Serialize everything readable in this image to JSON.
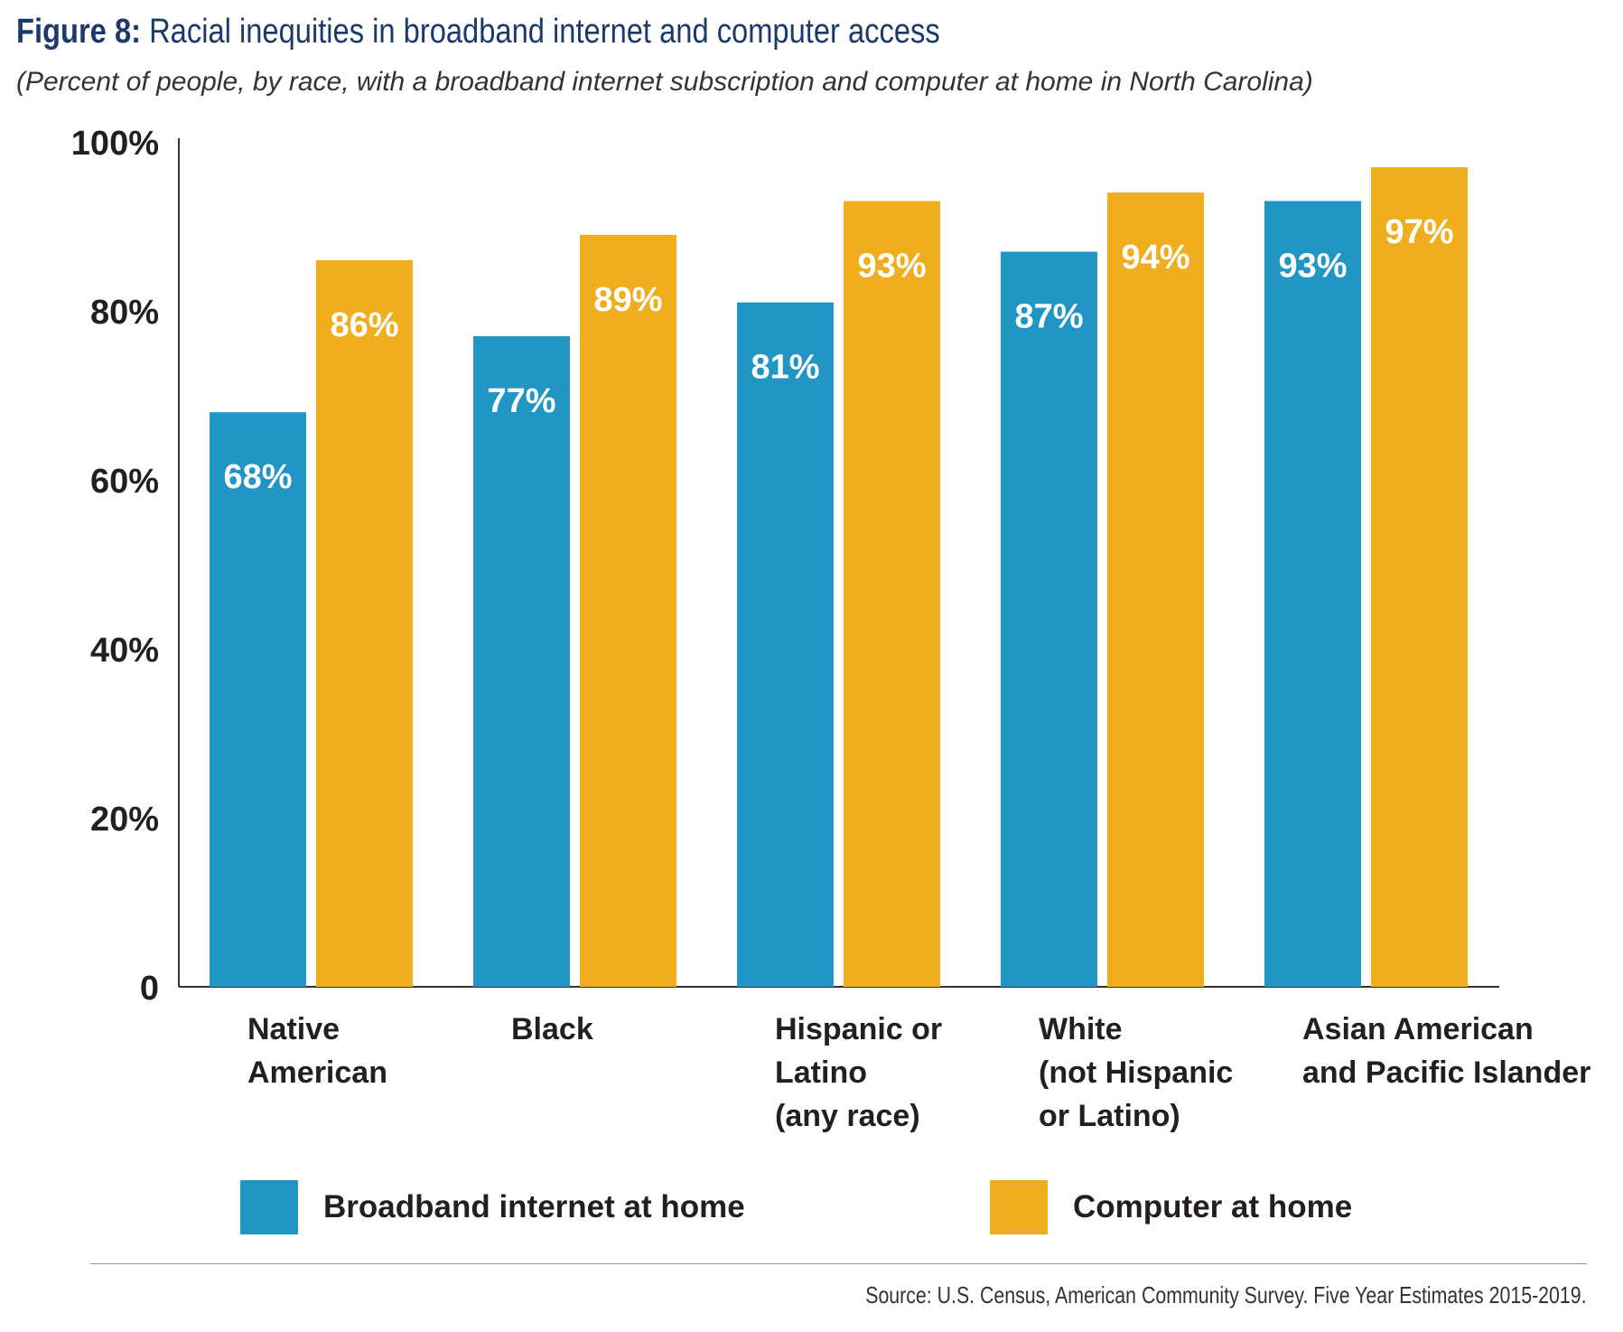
{
  "header": {
    "figure_label": "Figure 8:",
    "title": "Racial inequities in broadband internet and computer access",
    "subtitle": "(Percent of people, by race, with a broadband internet subscription and computer at home in North Carolina)"
  },
  "chart_data": {
    "type": "bar",
    "categories": [
      [
        "Native",
        "American"
      ],
      [
        "Black"
      ],
      [
        "Hispanic or",
        "Latino",
        "(any race)"
      ],
      [
        "White",
        "(not Hispanic",
        "or Latino)"
      ],
      [
        "Asian American",
        " and Pacific Islander"
      ]
    ],
    "series": [
      {
        "name": "Broadband internet at home",
        "color": "#2196c4",
        "values": [
          68,
          77,
          81,
          87,
          93
        ]
      },
      {
        "name": "Computer at home",
        "color": "#f0ae1e",
        "values": [
          86,
          89,
          93,
          94,
          97
        ]
      }
    ],
    "data_labels": [
      [
        "68%",
        "77%",
        "81%",
        "87%",
        "93%"
      ],
      [
        "86%",
        "89%",
        "93%",
        "94%",
        "97%"
      ]
    ],
    "yticks": [
      {
        "value": 0,
        "label": "0"
      },
      {
        "value": 20,
        "label": "20%"
      },
      {
        "value": 40,
        "label": "40%"
      },
      {
        "value": 60,
        "label": "60%"
      },
      {
        "value": 80,
        "label": "80%"
      },
      {
        "value": 100,
        "label": "100%"
      }
    ],
    "ylim": [
      0,
      100
    ],
    "grid": false,
    "legend_position": "bottom"
  },
  "footer": {
    "source": "Source: U.S. Census, American Community Survey. Five Year Estimates 2015-2019."
  }
}
